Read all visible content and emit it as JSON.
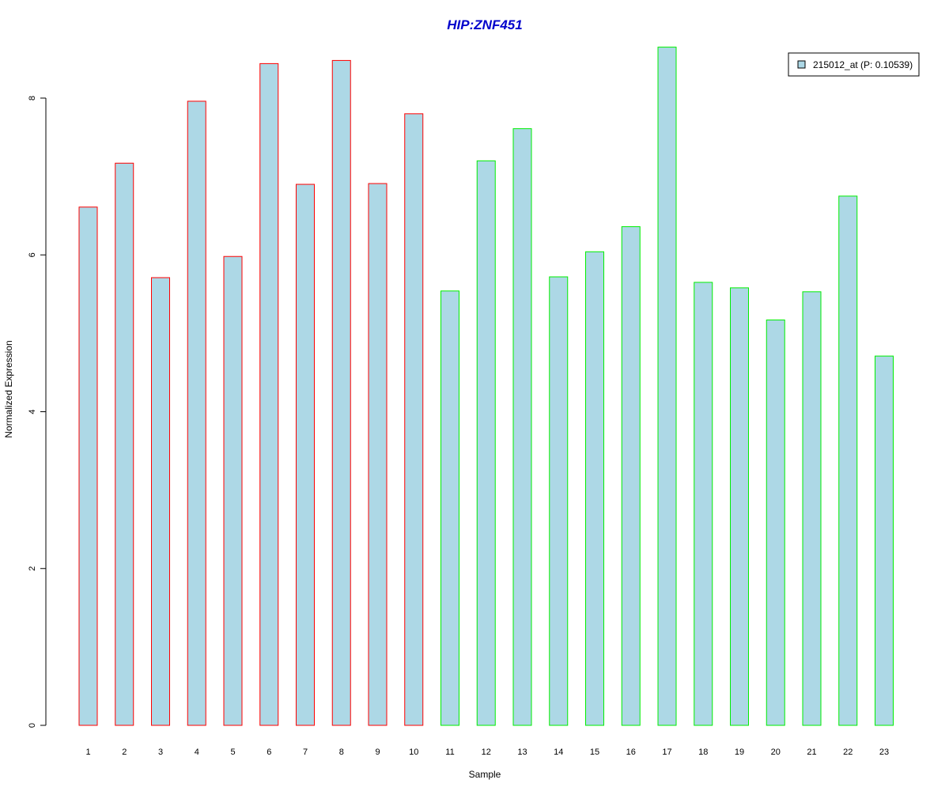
{
  "chart_data": {
    "type": "bar",
    "title": "HIP:ZNF451",
    "xlabel": "Sample",
    "ylabel": "Normalized Expression",
    "categories": [
      "1",
      "2",
      "3",
      "4",
      "5",
      "6",
      "7",
      "8",
      "9",
      "10",
      "11",
      "12",
      "13",
      "14",
      "15",
      "16",
      "17",
      "18",
      "19",
      "20",
      "21",
      "22",
      "23"
    ],
    "series": [
      {
        "name": "215012_at (P: 0.10539)",
        "values": [
          6.61,
          7.17,
          5.71,
          7.96,
          5.98,
          8.44,
          6.9,
          8.48,
          6.91,
          7.8,
          5.54,
          7.2,
          7.61,
          5.72,
          6.04,
          6.36,
          8.65,
          5.65,
          5.58,
          5.17,
          5.53,
          6.75,
          4.71
        ]
      }
    ],
    "group_outline_colors": [
      "#ff0000",
      "#ff0000",
      "#ff0000",
      "#ff0000",
      "#ff0000",
      "#ff0000",
      "#ff0000",
      "#ff0000",
      "#ff0000",
      "#ff0000",
      "#00ee00",
      "#00ee00",
      "#00ee00",
      "#00ee00",
      "#00ee00",
      "#00ee00",
      "#00ee00",
      "#00ee00",
      "#00ee00",
      "#00ee00",
      "#00ee00",
      "#00ee00",
      "#00ee00"
    ],
    "fill_color": "#add8e6",
    "title_color": "#0000cc",
    "ylim": [
      0,
      8.7
    ],
    "yticks": [
      "0",
      "2",
      "4",
      "6",
      "8"
    ],
    "legend_position": "top-right",
    "grid": false
  }
}
